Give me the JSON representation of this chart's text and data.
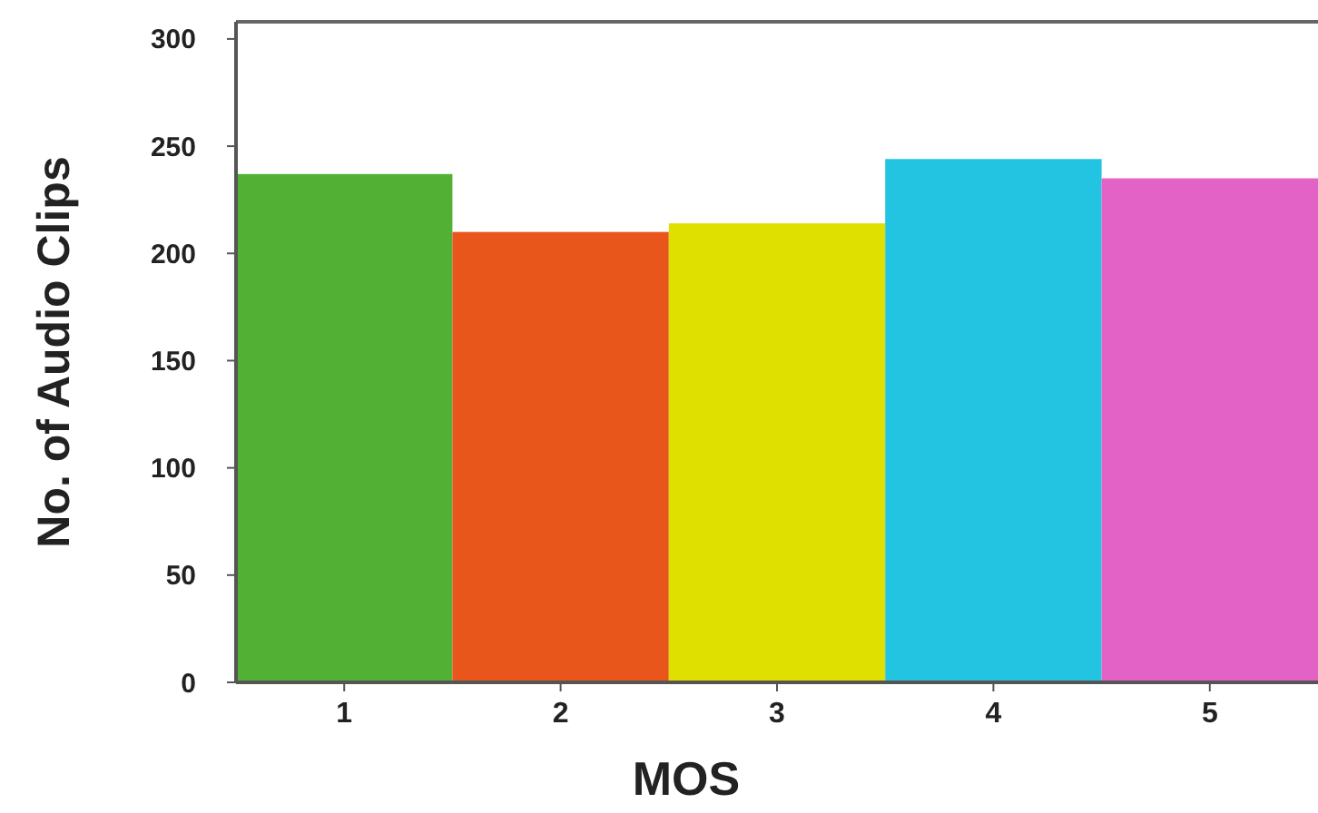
{
  "chart_data": {
    "type": "bar",
    "xlabel": "MOS",
    "ylabel": "No. of Audio Clips",
    "categories": [
      "1",
      "2",
      "3",
      "4",
      "5"
    ],
    "values": [
      237,
      210,
      214,
      244,
      235
    ],
    "colors": [
      "#52b034",
      "#e8561c",
      "#dfdf00",
      "#22c4e2",
      "#e262c6"
    ],
    "ylim": [
      0,
      308
    ],
    "yticks": [
      0,
      50,
      100,
      150,
      200,
      250,
      300
    ]
  }
}
